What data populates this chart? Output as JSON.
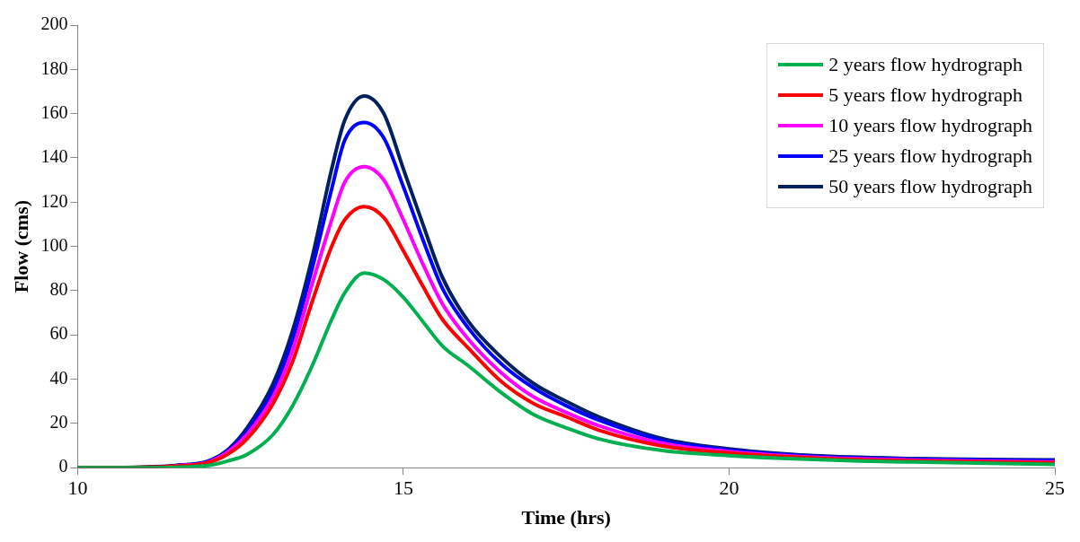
{
  "chart_data": {
    "type": "line",
    "xlabel": "Time (hrs)",
    "ylabel": "Flow (cms)",
    "x": [
      10,
      11,
      11.5,
      12,
      12.3,
      12.6,
      13,
      13.3,
      13.6,
      13.9,
      14.1,
      14.4,
      14.7,
      15,
      15.3,
      15.6,
      16,
      16.5,
      17,
      17.5,
      18,
      19,
      20,
      21,
      22,
      23,
      25
    ],
    "series": [
      {
        "name": "2 years flow hydrograph",
        "color": "#00b050",
        "values": [
          0,
          0,
          0.2,
          1,
          3,
          6,
          15,
          28,
          46,
          67,
          79,
          88,
          85,
          77,
          66,
          55,
          46,
          34,
          24,
          18,
          13,
          7.7,
          5.5,
          4,
          3,
          2.5,
          1.5
        ]
      },
      {
        "name": "5 years flow hydrograph",
        "color": "#ff0000",
        "values": [
          0,
          0.2,
          0.7,
          2.2,
          6,
          13,
          29,
          48,
          75,
          100,
          112,
          118,
          113,
          98,
          82,
          67,
          54,
          39,
          29,
          23,
          17,
          9.7,
          6.7,
          4.8,
          3.6,
          3,
          2.2
        ]
      },
      {
        "name": "10 years flow hydrograph",
        "color": "#ff00ff",
        "values": [
          null,
          null,
          0.8,
          2.5,
          7,
          15,
          32,
          53,
          83,
          112,
          129,
          136,
          130,
          112,
          92,
          74,
          58,
          43,
          32,
          25,
          19,
          10.9,
          7.3,
          5.2,
          4,
          3.3,
          2.6
        ]
      },
      {
        "name": "25 years flow hydrograph",
        "color": "#0000ff",
        "values": [
          null,
          null,
          0.9,
          2.8,
          7.5,
          16.5,
          35,
          58,
          90,
          126,
          148,
          156,
          149,
          127,
          103,
          81,
          63,
          47,
          36,
          28,
          21.5,
          12.2,
          8,
          5.7,
          4.4,
          3.8,
          3.2
        ]
      },
      {
        "name": "50 years flow hydrograph",
        "color": "#002060",
        "values": [
          0,
          0.3,
          1,
          3,
          8,
          18,
          38,
          62,
          95,
          135,
          157,
          168,
          160,
          135,
          110,
          86,
          66,
          50,
          38,
          30,
          23,
          13,
          8.5,
          6,
          4.7,
          4,
          3.5
        ]
      }
    ],
    "xlim": [
      10,
      25
    ],
    "xticks": [
      10,
      15,
      20,
      25
    ],
    "ylim": [
      0,
      200
    ],
    "yticks": [
      0,
      20,
      40,
      60,
      80,
      100,
      120,
      140,
      160,
      180,
      200
    ],
    "grid": false,
    "legend": "top right",
    "marker": "none",
    "line_style": "solid"
  }
}
